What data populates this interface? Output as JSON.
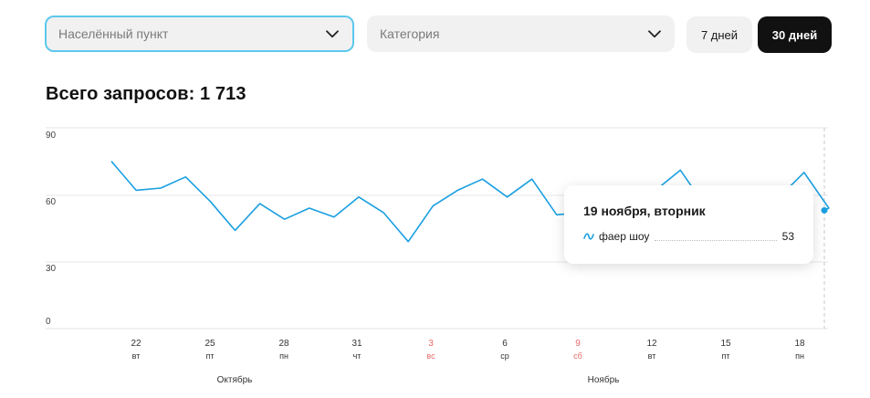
{
  "filters": {
    "locality": {
      "placeholder": "Населённый пункт",
      "icon": "chevron-down-icon"
    },
    "category": {
      "placeholder": "Категория",
      "icon": "chevron-down-icon"
    },
    "periods": [
      {
        "label": "7 дней",
        "active": false
      },
      {
        "label": "30 дней",
        "active": true
      }
    ]
  },
  "summary": {
    "total_label": "Всего запросов: 1 713"
  },
  "tooltip": {
    "title": "19 ноября, вторник",
    "series_name": "фаер шоу",
    "value": "53",
    "icon": "line-series-icon"
  },
  "colors": {
    "line": "#1a9fe0",
    "weekend": "#e86a6a",
    "accent_border": "#5cc8ee"
  },
  "chart_data": {
    "type": "line",
    "ylim": [
      0,
      90
    ],
    "y_ticks": [
      "90",
      "60",
      "30",
      "0"
    ],
    "x": [
      "20",
      "21",
      "22",
      "23",
      "24",
      "25",
      "26",
      "27",
      "28",
      "29",
      "30",
      "31",
      "1",
      "2",
      "3",
      "4",
      "5",
      "6",
      "7",
      "8",
      "9",
      "10",
      "11",
      "12",
      "13",
      "14",
      "15",
      "16",
      "17",
      "18",
      "19"
    ],
    "x_tick_labels": [
      {
        "day": "22",
        "weekday": "вт",
        "weekend": false
      },
      {
        "day": "25",
        "weekday": "пт",
        "weekend": false
      },
      {
        "day": "28",
        "weekday": "пн",
        "weekend": false
      },
      {
        "day": "31",
        "weekday": "чт",
        "weekend": false
      },
      {
        "day": "3",
        "weekday": "вс",
        "weekend": true
      },
      {
        "day": "6",
        "weekday": "ср",
        "weekend": false
      },
      {
        "day": "9",
        "weekday": "сб",
        "weekend": true
      },
      {
        "day": "12",
        "weekday": "вт",
        "weekend": false
      },
      {
        "day": "15",
        "weekday": "пт",
        "weekend": false
      },
      {
        "day": "18",
        "weekday": "пн",
        "weekend": false
      }
    ],
    "months": [
      "Октябрь",
      "Ноябрь"
    ],
    "series": [
      {
        "values": [
          75,
          62,
          63,
          68,
          57,
          44,
          56,
          49,
          54,
          50,
          59,
          52,
          39,
          55,
          62,
          67,
          59,
          67,
          51,
          52,
          58,
          60,
          62,
          71,
          55,
          58,
          59,
          59,
          70,
          54,
          53
        ]
      }
    ],
    "grid": true,
    "legend": "none"
  }
}
